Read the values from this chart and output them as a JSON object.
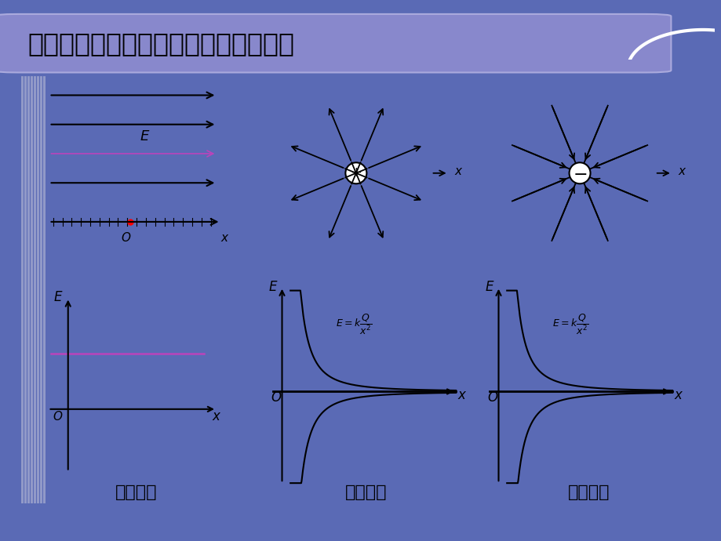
{
  "title": "几种常见电场的场强与位移变化的图象",
  "bg_color": "#5a6ab5",
  "panel_bg": "#f0f0f8",
  "subtitle1": "匀强电场",
  "subtitle2": "正点电荷",
  "subtitle3": "负点电荷",
  "title_box_color": "#8888cc",
  "line_color_purple": "#bb44bb",
  "bottom_bar_color": "#bb44bb"
}
